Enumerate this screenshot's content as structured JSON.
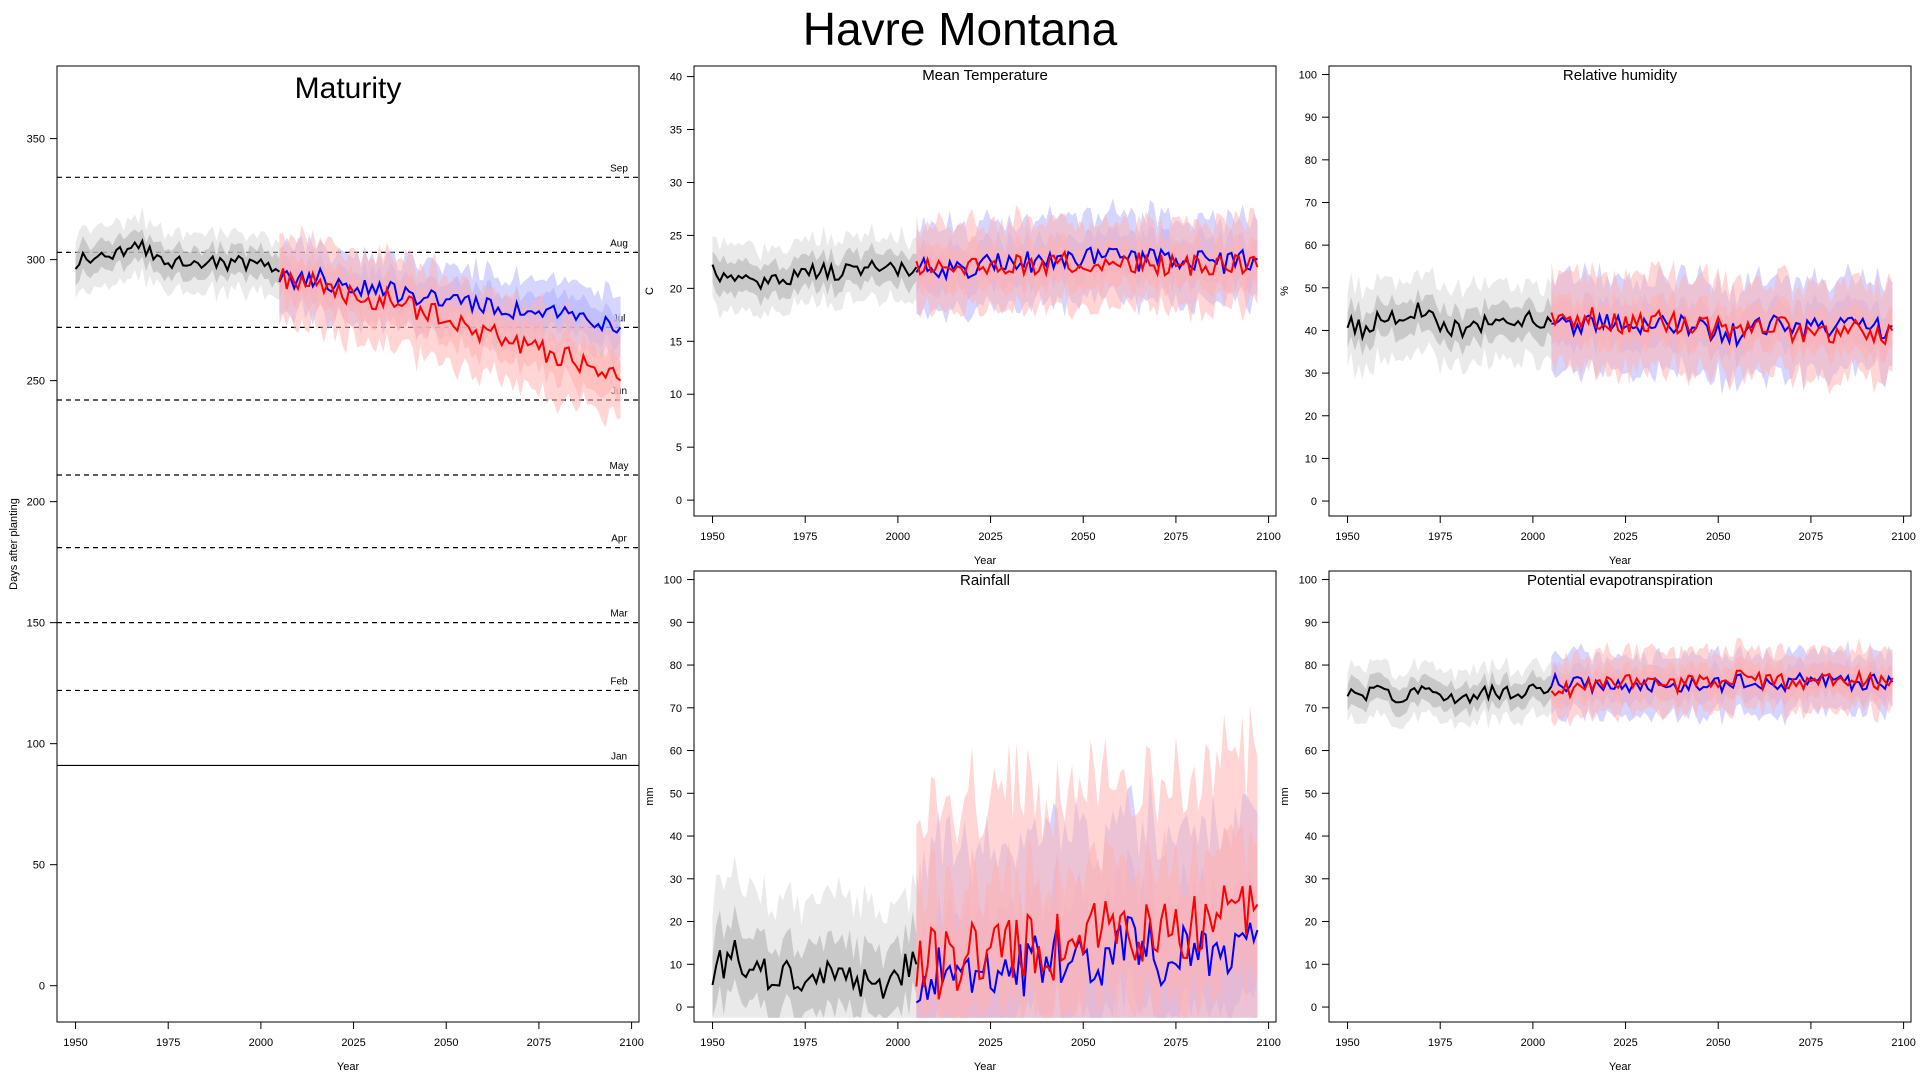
{
  "title": "Havre Montana",
  "colors": {
    "historical": "#000000",
    "series_blue": "#0000ff",
    "series_red": "#ff0000",
    "band_gray_outer": "#d9d9d9",
    "band_gray_inner": "#b3b3b3",
    "band_blue": "#b3b3ff",
    "band_red": "#ffb3b3"
  },
  "chart_data": [
    {
      "id": "maturity",
      "type": "line",
      "title": "Maturity",
      "xlabel": "Year",
      "ylabel": "Days after planting",
      "xlim": [
        1945,
        2102
      ],
      "ylim": [
        -15,
        380
      ],
      "xticks": [
        1950,
        1975,
        2000,
        2025,
        2050,
        2075,
        2100
      ],
      "yticks": [
        0,
        50,
        100,
        150,
        200,
        250,
        300,
        350
      ],
      "grid": false,
      "reference_lines": [
        {
          "label": "Jan",
          "value": 91,
          "style": "solid"
        },
        {
          "label": "Feb",
          "value": 122,
          "style": "dashed"
        },
        {
          "label": "Mar",
          "value": 150,
          "style": "dashed"
        },
        {
          "label": "Apr",
          "value": 181,
          "style": "dashed"
        },
        {
          "label": "May",
          "value": 211,
          "style": "dashed"
        },
        {
          "label": "Jun",
          "value": 242,
          "style": "dashed"
        },
        {
          "label": "Jul",
          "value": 272,
          "style": "dashed"
        },
        {
          "label": "Aug",
          "value": 303,
          "style": "dashed"
        },
        {
          "label": "Sep",
          "value": 334,
          "style": "dashed"
        }
      ],
      "series": [
        {
          "color": "black",
          "x": [
            1950,
            1955,
            1960,
            1965,
            1970,
            1975,
            1980,
            1985,
            1990,
            1995,
            2000,
            2005
          ],
          "y": [
            299,
            301,
            303,
            306,
            304,
            300,
            299,
            300,
            298,
            299,
            297,
            295
          ],
          "band_outer": 12,
          "band_inner": 6
        },
        {
          "color": "blue",
          "x": [
            2005,
            2010,
            2015,
            2020,
            2025,
            2030,
            2035,
            2040,
            2045,
            2050,
            2055,
            2060,
            2065,
            2070,
            2075,
            2080,
            2085,
            2090,
            2095,
            2097
          ],
          "y": [
            292,
            291,
            293,
            290,
            289,
            288,
            287,
            285,
            284,
            283,
            282,
            281,
            280,
            279,
            278,
            277,
            276,
            275,
            273,
            272
          ],
          "band_outer": 14,
          "band_inner": 7
        },
        {
          "color": "red",
          "x": [
            2005,
            2010,
            2015,
            2020,
            2025,
            2030,
            2035,
            2040,
            2045,
            2050,
            2055,
            2060,
            2065,
            2070,
            2075,
            2080,
            2085,
            2090,
            2095,
            2097
          ],
          "y": [
            292,
            290,
            291,
            288,
            286,
            284,
            283,
            281,
            278,
            275,
            272,
            270,
            268,
            265,
            263,
            261,
            258,
            256,
            252,
            250
          ],
          "band_outer": 18,
          "band_inner": 9
        }
      ]
    },
    {
      "id": "temperature",
      "type": "line",
      "title": "Mean Temperature",
      "xlabel": "Year",
      "ylabel": "C",
      "xlim": [
        1945,
        2102
      ],
      "ylim": [
        -1.5,
        41
      ],
      "xticks": [
        1950,
        1975,
        2000,
        2025,
        2050,
        2075,
        2100
      ],
      "yticks": [
        0,
        5,
        10,
        15,
        20,
        25,
        30,
        35,
        40
      ],
      "grid": false,
      "series": [
        {
          "color": "black",
          "x": [
            1950,
            1955,
            1960,
            1965,
            1970,
            1975,
            1980,
            1985,
            1990,
            1995,
            2000,
            2005
          ],
          "y": [
            21.5,
            20.8,
            21.2,
            20.5,
            21.0,
            21.3,
            21.8,
            21.5,
            22.0,
            22.2,
            21.8,
            22.0
          ],
          "band_outer": 3,
          "band_inner": 1.5
        },
        {
          "color": "blue",
          "x": [
            2005,
            2015,
            2025,
            2035,
            2045,
            2055,
            2065,
            2075,
            2085,
            2095,
            2097
          ],
          "y": [
            22.0,
            21.8,
            22.3,
            22.6,
            22.4,
            23.0,
            22.6,
            22.9,
            22.3,
            22.6,
            22.7
          ],
          "band_outer": 4,
          "band_inner": 2
        },
        {
          "color": "red",
          "x": [
            2005,
            2015,
            2025,
            2035,
            2045,
            2055,
            2065,
            2075,
            2085,
            2095,
            2097
          ],
          "y": [
            22.2,
            22.1,
            22.4,
            22.2,
            22.7,
            22.2,
            22.5,
            22.0,
            22.4,
            21.8,
            22.0
          ],
          "band_outer": 4,
          "band_inner": 2
        }
      ]
    },
    {
      "id": "humidity",
      "type": "line",
      "title": "Relative humidity",
      "xlabel": "Year",
      "ylabel": "%",
      "xlim": [
        1945,
        2102
      ],
      "ylim": [
        -3.5,
        102
      ],
      "xticks": [
        1950,
        1975,
        2000,
        2025,
        2050,
        2075,
        2100
      ],
      "yticks": [
        0,
        10,
        20,
        30,
        40,
        50,
        60,
        70,
        80,
        90,
        100
      ],
      "grid": false,
      "series": [
        {
          "color": "black",
          "x": [
            1950,
            1955,
            1960,
            1965,
            1970,
            1975,
            1980,
            1985,
            1990,
            1995,
            2000,
            2005
          ],
          "y": [
            42,
            40,
            44,
            42,
            45,
            41,
            40,
            41,
            42,
            40,
            43,
            42
          ],
          "band_outer": 9,
          "band_inner": 4
        },
        {
          "color": "blue",
          "x": [
            2005,
            2015,
            2025,
            2035,
            2045,
            2055,
            2065,
            2075,
            2085,
            2095,
            2097
          ],
          "y": [
            40,
            42,
            41,
            43,
            40,
            39,
            42,
            40,
            41,
            40,
            41
          ],
          "band_outer": 11,
          "band_inner": 5
        },
        {
          "color": "red",
          "x": [
            2005,
            2015,
            2025,
            2035,
            2045,
            2055,
            2065,
            2075,
            2085,
            2095,
            2097
          ],
          "y": [
            42,
            43,
            41,
            42,
            41,
            40,
            41,
            39,
            40,
            39,
            40
          ],
          "band_outer": 11,
          "band_inner": 5
        }
      ]
    },
    {
      "id": "rainfall",
      "type": "line",
      "title": "Rainfall",
      "xlabel": "Year",
      "ylabel": "mm",
      "xlim": [
        1945,
        2102
      ],
      "ylim": [
        -3.5,
        102
      ],
      "xticks": [
        1950,
        1975,
        2000,
        2025,
        2050,
        2075,
        2100
      ],
      "yticks": [
        0,
        10,
        20,
        30,
        40,
        50,
        60,
        70,
        80,
        90,
        100
      ],
      "grid": false,
      "series": [
        {
          "color": "black",
          "x": [
            1950,
            1955,
            1960,
            1965,
            1970,
            1975,
            1980,
            1985,
            1990,
            1995,
            2000,
            2005
          ],
          "y": [
            8,
            12,
            9,
            7,
            8,
            6,
            7,
            5,
            6,
            5,
            7,
            10
          ],
          "band_outer": 18,
          "band_inner": 8
        },
        {
          "color": "blue",
          "x": [
            2005,
            2015,
            2025,
            2035,
            2045,
            2055,
            2065,
            2075,
            2085,
            2095,
            2097
          ],
          "y": [
            8,
            9,
            11,
            10,
            13,
            12,
            14,
            12,
            15,
            13,
            18
          ],
          "band_outer": 30,
          "band_inner": 14
        },
        {
          "color": "red",
          "x": [
            2005,
            2015,
            2025,
            2035,
            2045,
            2055,
            2065,
            2075,
            2085,
            2095,
            2097
          ],
          "y": [
            9,
            11,
            12,
            14,
            15,
            16,
            18,
            20,
            19,
            22,
            24
          ],
          "band_outer": 35,
          "band_inner": 16
        }
      ]
    },
    {
      "id": "evapotranspiration",
      "type": "line",
      "title": "Potential evapotranspiration",
      "xlabel": "Year",
      "ylabel": "mm",
      "xlim": [
        1945,
        2102
      ],
      "ylim": [
        -3.5,
        102
      ],
      "xticks": [
        1950,
        1975,
        2000,
        2025,
        2050,
        2075,
        2100
      ],
      "yticks": [
        0,
        10,
        20,
        30,
        40,
        50,
        60,
        70,
        80,
        90,
        100
      ],
      "grid": false,
      "series": [
        {
          "color": "black",
          "x": [
            1950,
            1955,
            1960,
            1965,
            1970,
            1975,
            1980,
            1985,
            1990,
            1995,
            2000,
            2005
          ],
          "y": [
            74,
            73,
            74,
            72,
            74,
            73,
            72,
            73,
            74,
            73,
            74,
            75
          ],
          "band_outer": 6,
          "band_inner": 3
        },
        {
          "color": "blue",
          "x": [
            2005,
            2015,
            2025,
            2035,
            2045,
            2055,
            2065,
            2075,
            2085,
            2095,
            2097
          ],
          "y": [
            76,
            75,
            75,
            76,
            75,
            76,
            75,
            77,
            76,
            76,
            76
          ],
          "band_outer": 7,
          "band_inner": 3.5
        },
        {
          "color": "red",
          "x": [
            2005,
            2015,
            2025,
            2035,
            2045,
            2055,
            2065,
            2075,
            2085,
            2095,
            2097
          ],
          "y": [
            74,
            75,
            76,
            75,
            76,
            77,
            76,
            76,
            77,
            76,
            77
          ],
          "band_outer": 7,
          "band_inner": 3.5
        }
      ]
    }
  ]
}
